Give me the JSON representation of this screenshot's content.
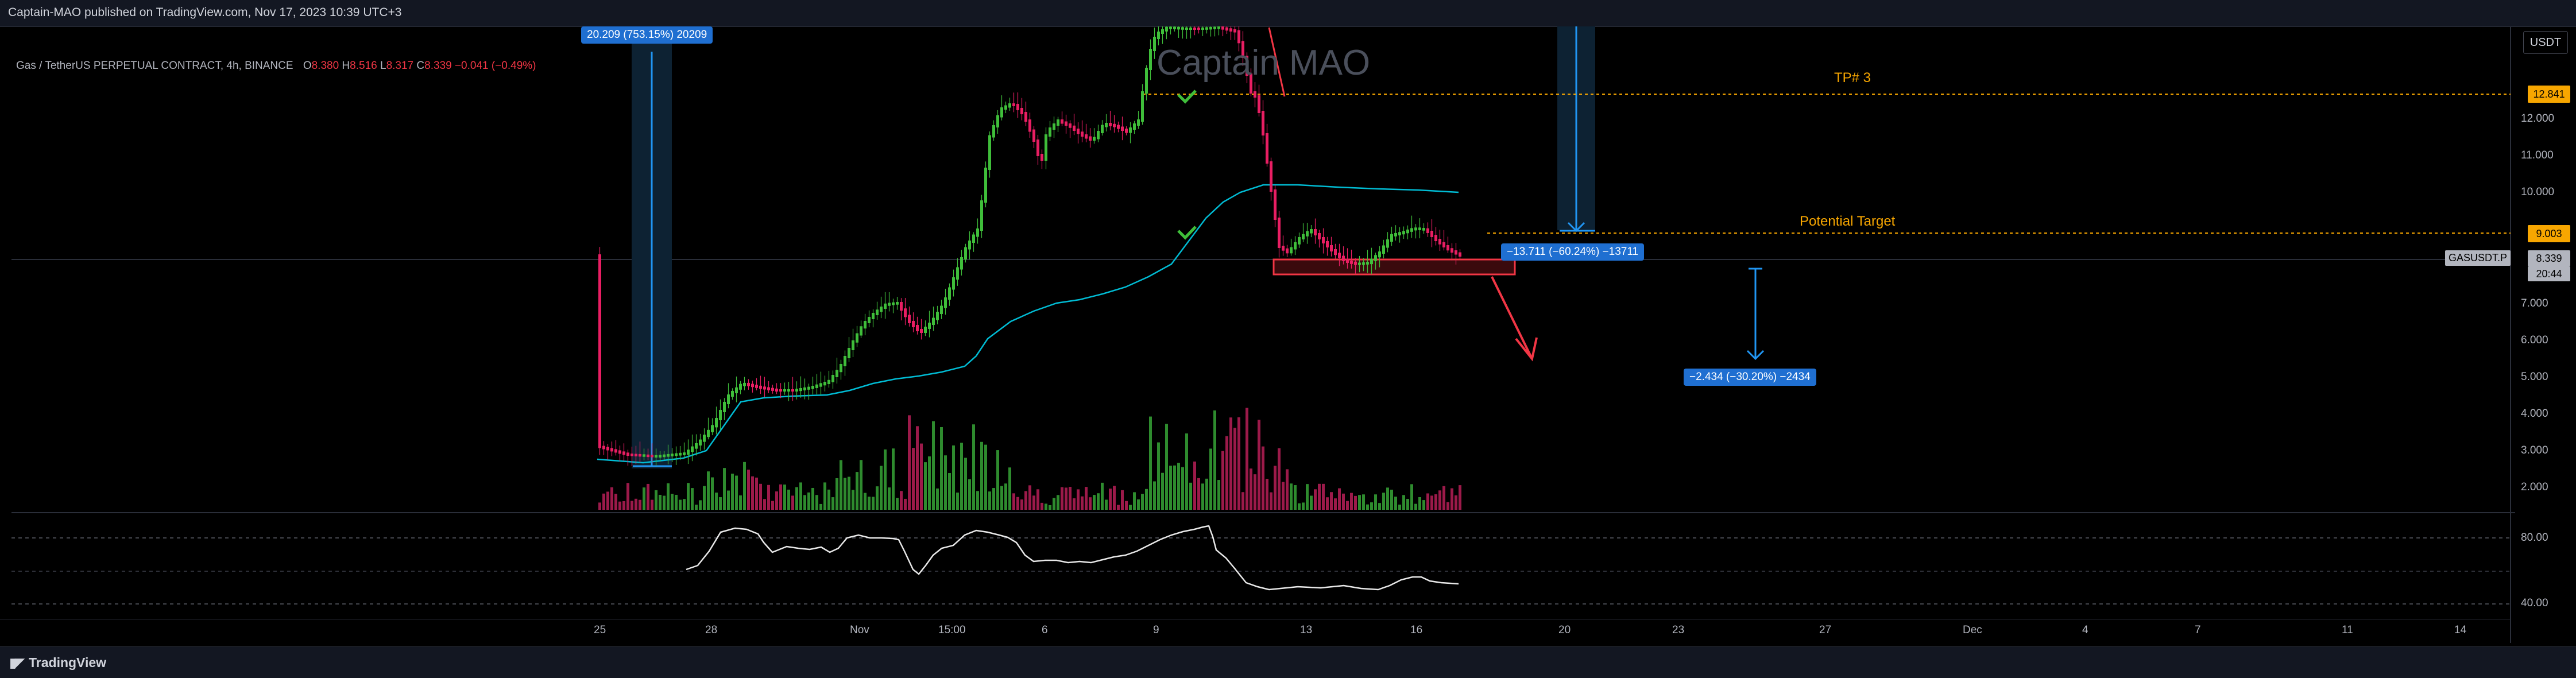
{
  "header": {
    "published": "Captain-MAO published on TradingView.com, Nov 17, 2023 10:39 UTC+3"
  },
  "legend": {
    "symbol": "Gas / TetherUS PERPETUAL CONTRACT, 4h, BINANCE",
    "o_label": "O",
    "o": "8.380",
    "h_label": "H",
    "h": "8.516",
    "l_label": "L",
    "l": "8.317",
    "c_label": "C",
    "c": "8.339",
    "change": "−0.041 (−0.49%)"
  },
  "watermark": "Captain MAO",
  "currency_button": "USDT",
  "price_axis": {
    "ticks": [
      "12.000",
      "11.000",
      "10.000",
      "7.000",
      "6.000",
      "5.000",
      "4.000",
      "3.000",
      "2.000"
    ],
    "tags": {
      "tp3": "12.841",
      "target": "9.003",
      "symbol": "GASUSDT.P",
      "last": "8.339",
      "countdown": "20:44"
    }
  },
  "rsi_axis": {
    "ticks": [
      "80.00",
      "40.00"
    ]
  },
  "time_axis": {
    "labels": [
      "25",
      "28",
      "Nov",
      "15:00",
      "6",
      "9",
      "13",
      "16",
      "20",
      "23",
      "27",
      "Dec",
      "4",
      "7",
      "11",
      "14"
    ]
  },
  "annotations": {
    "measure_up": "20.209 (753.15%) 20209",
    "measure_down_1": "−13.711 (−60.24%) −13711",
    "measure_down_2": "−2.434 (−30.20%) −2434",
    "tp3": "TP# 3",
    "potential_target": "Potential Target"
  },
  "footer": {
    "brand": "TradingView"
  },
  "colors": {
    "up": "#26a69a",
    "candle_up": "#3fbe3a",
    "candle_down": "#e91e63",
    "vwap": "#00bcd4",
    "orange": "#f7a600",
    "blue": "#2962ff",
    "red": "#f23645"
  }
}
